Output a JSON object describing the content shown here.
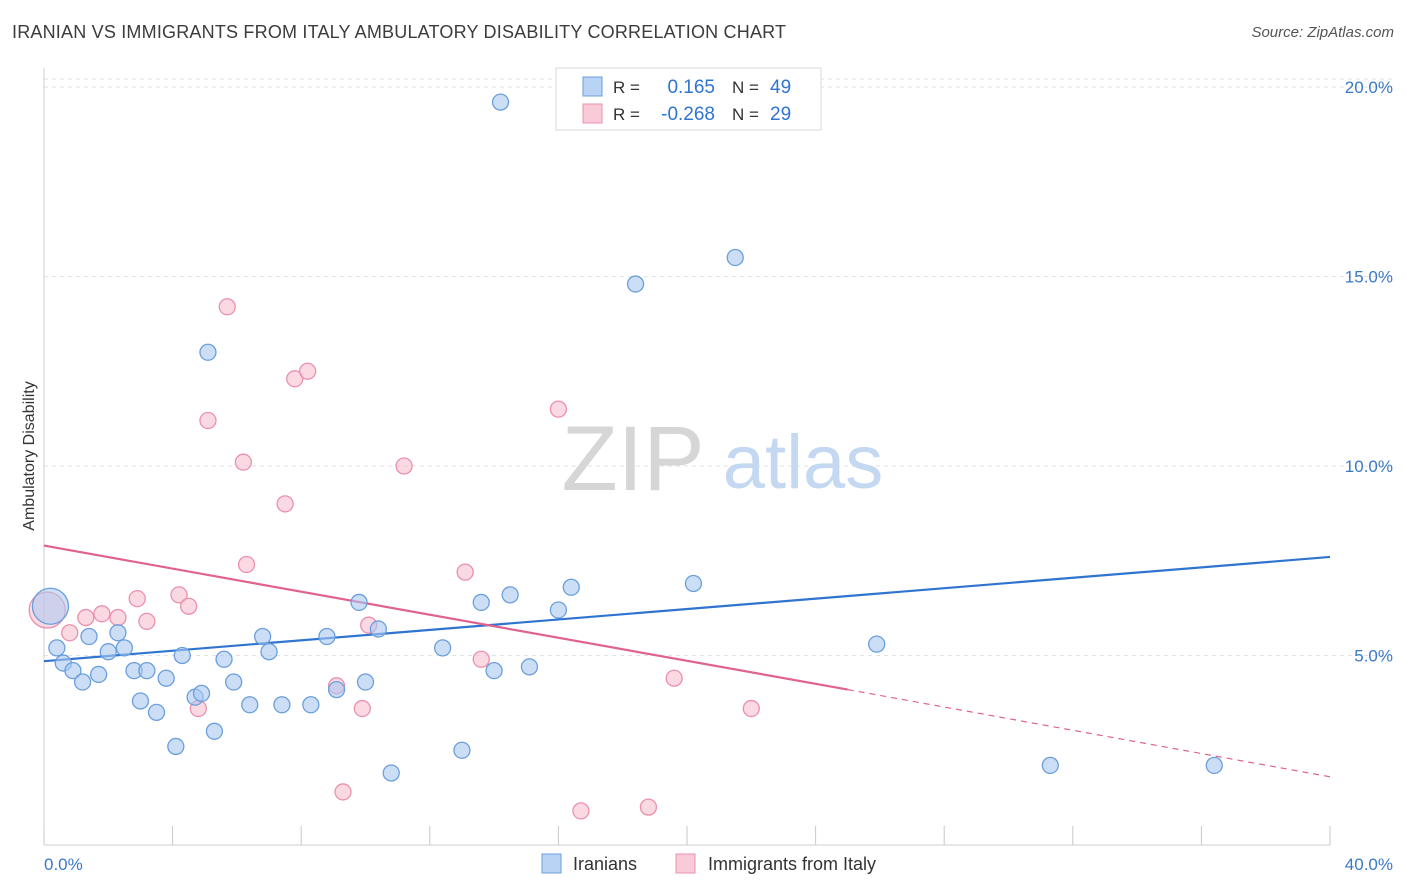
{
  "header": {
    "title": "IRANIAN VS IMMIGRANTS FROM ITALY AMBULATORY DISABILITY CORRELATION CHART",
    "source": "Source: ZipAtlas.com"
  },
  "watermark": {
    "zip": "ZIP",
    "atlas": "atlas"
  },
  "colors": {
    "blue_fill": "#a9c8f0",
    "blue_stroke": "#6b9fdc",
    "blue_line": "#2f74d0",
    "pink_fill": "#f7c0d0",
    "pink_stroke": "#eb90ae",
    "pink_line": "#e0628f",
    "axis_text": "#3a78c8",
    "grid": "#e2e2e2"
  },
  "chart_data": {
    "type": "scatter",
    "title": "IRANIAN VS IMMIGRANTS FROM ITALY AMBULATORY DISABILITY CORRELATION CHART",
    "xlabel": "",
    "ylabel": "Ambulatory Disability",
    "xlim": [
      0,
      40
    ],
    "ylim": [
      0,
      20.5
    ],
    "x_tick_labels": [
      "0.0%",
      "40.0%"
    ],
    "y_ticks": [
      5,
      10,
      15,
      20
    ],
    "y_tick_labels": [
      "5.0%",
      "10.0%",
      "15.0%",
      "20.0%"
    ],
    "grid": true,
    "legend_position": "top-center",
    "legend": [
      {
        "r_label": "R =",
        "r_value": "0.165",
        "n_label": "N =",
        "n_value": "49"
      },
      {
        "r_label": "R =",
        "r_value": "-0.268",
        "n_label": "N =",
        "n_value": "29"
      }
    ],
    "series": [
      {
        "name": "Iranians",
        "trend": {
          "x0": 0,
          "y0": 4.85,
          "x1": 40,
          "y1": 7.6
        },
        "points": [
          [
            0.2,
            6.3,
            "big"
          ],
          [
            0.4,
            5.2
          ],
          [
            0.6,
            4.8
          ],
          [
            0.9,
            4.6
          ],
          [
            1.2,
            4.3
          ],
          [
            1.4,
            5.5
          ],
          [
            1.7,
            4.5
          ],
          [
            2.0,
            5.1
          ],
          [
            2.3,
            5.6
          ],
          [
            2.5,
            5.2
          ],
          [
            2.8,
            4.6
          ],
          [
            3.0,
            3.8
          ],
          [
            3.2,
            4.6
          ],
          [
            3.5,
            3.5
          ],
          [
            3.8,
            4.4
          ],
          [
            4.1,
            2.6
          ],
          [
            4.3,
            5.0
          ],
          [
            4.7,
            3.9
          ],
          [
            4.9,
            4.0
          ],
          [
            5.1,
            13.0
          ],
          [
            5.3,
            3.0
          ],
          [
            5.6,
            4.9
          ],
          [
            5.9,
            4.3
          ],
          [
            6.4,
            3.7
          ],
          [
            6.8,
            5.5
          ],
          [
            7.0,
            5.1
          ],
          [
            7.4,
            3.7
          ],
          [
            8.3,
            3.7
          ],
          [
            8.8,
            5.5
          ],
          [
            9.1,
            4.1
          ],
          [
            9.8,
            6.4
          ],
          [
            10.0,
            4.3
          ],
          [
            10.4,
            5.7
          ],
          [
            10.8,
            1.9
          ],
          [
            12.4,
            5.2
          ],
          [
            13.0,
            2.5
          ],
          [
            13.6,
            6.4
          ],
          [
            14.0,
            4.6
          ],
          [
            14.2,
            19.6
          ],
          [
            14.5,
            6.6
          ],
          [
            15.1,
            4.7
          ],
          [
            16.0,
            6.2
          ],
          [
            16.4,
            6.8
          ],
          [
            18.4,
            14.8
          ],
          [
            20.2,
            6.9
          ],
          [
            21.5,
            15.5
          ],
          [
            25.9,
            5.3
          ],
          [
            31.3,
            2.1
          ],
          [
            36.4,
            2.1
          ]
        ]
      },
      {
        "name": "Immigrants from Italy",
        "trend": {
          "x0": 0,
          "y0": 7.9,
          "x1": 25,
          "y1": 4.1,
          "dash_x1": 40,
          "dash_y1": 1.8
        },
        "points": [
          [
            0.1,
            6.2,
            "big"
          ],
          [
            0.8,
            5.6
          ],
          [
            1.3,
            6.0
          ],
          [
            1.8,
            6.1
          ],
          [
            2.3,
            6.0
          ],
          [
            2.9,
            6.5
          ],
          [
            3.2,
            5.9
          ],
          [
            4.2,
            6.6
          ],
          [
            4.5,
            6.3
          ],
          [
            4.8,
            3.6
          ],
          [
            5.1,
            11.2
          ],
          [
            5.7,
            14.2
          ],
          [
            6.2,
            10.1
          ],
          [
            6.3,
            7.4
          ],
          [
            7.5,
            9.0
          ],
          [
            7.8,
            12.3
          ],
          [
            8.2,
            12.5
          ],
          [
            9.1,
            4.2
          ],
          [
            9.3,
            1.4
          ],
          [
            9.9,
            3.6
          ],
          [
            10.1,
            5.8
          ],
          [
            11.2,
            10.0
          ],
          [
            13.1,
            7.2
          ],
          [
            13.6,
            4.9
          ],
          [
            16.0,
            11.5
          ],
          [
            16.7,
            0.9
          ],
          [
            18.8,
            1.0
          ],
          [
            19.6,
            4.4
          ],
          [
            22.0,
            3.6
          ]
        ]
      }
    ]
  },
  "legend_bottom": {
    "iranians": "Iranians",
    "italy": "Immigrants from Italy"
  }
}
